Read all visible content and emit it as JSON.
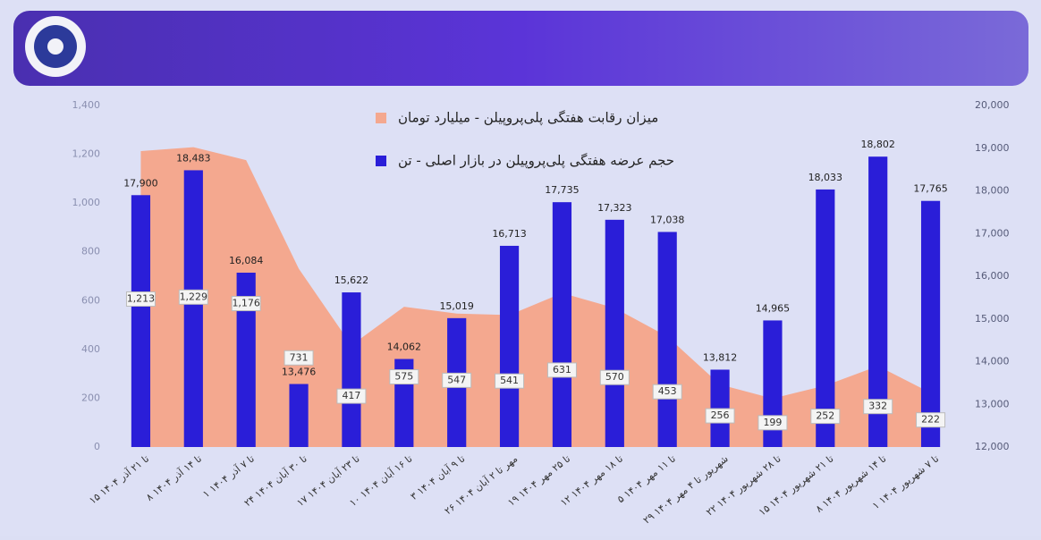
{
  "chart_data": {
    "type": "combo",
    "categories": [
      "۱۵ تا ۲۱ آذر ۱۴۰۴",
      "۸ تا ۱۴ آذر ۱۴۰۴",
      "۱ تا ۷ آذر ۱۴۰۴",
      "۲۴ تا ۳۰ آبان ۱۴۰۴",
      "۱۷ تا ۲۳ آبان ۱۴۰۴",
      "۱۰ تا ۱۶ آبان ۱۴۰۴",
      "۳ تا ۹ آبان ۱۴۰۴",
      "۲۶ مهر تا ۲ آبان ۱۴۰۴",
      "۱۹ تا ۲۵ مهر ۱۴۰۴",
      "۱۲ تا ۱۸ مهر ۱۴۰۴",
      "۵ تا ۱۱ مهر ۱۴۰۴",
      "۲۹ شهریور تا ۴ مهر ۱۴۰۴",
      "۲۲ تا ۲۸ شهریور ۱۴۰۴",
      "۱۵ تا ۲۱ شهریور ۱۴۰۴",
      "۸ تا ۱۴ شهریور ۱۴۰۴",
      "۱ تا ۷ شهریور ۱۴۰۴"
    ],
    "series": [
      {
        "name": "میزان رقابت هفتگی پلی‌پروپیلن - میلیارد تومان",
        "type": "area",
        "color": "#f4a88f",
        "axis": "y",
        "values": [
          1213,
          1229,
          1176,
          731,
          417,
          575,
          547,
          541,
          631,
          570,
          453,
          256,
          199,
          252,
          332,
          222
        ],
        "value_labels": [
          "1,213",
          "1,229",
          "1,176",
          "731",
          "417",
          "575",
          "547",
          "541",
          "631",
          "570",
          "453",
          "256",
          "199",
          "252",
          "332",
          "222"
        ]
      },
      {
        "name": "حجم عرضه هفتگی پلی‌پروپیلن در بازار اصلی - تن",
        "type": "bar",
        "color": "#2a1ed8",
        "axis": "y2",
        "values": [
          17900,
          18483,
          16084,
          13476,
          15622,
          14062,
          15019,
          16713,
          17735,
          17323,
          17038,
          13812,
          14965,
          18033,
          18802,
          17765
        ],
        "value_labels": [
          "17,900",
          "18,483",
          "16,084",
          "13,476",
          "15,622",
          "14,062",
          "15,019",
          "16,713",
          "17,735",
          "17,323",
          "17,038",
          "13,812",
          "14,965",
          "18,033",
          "18,802",
          "17,765"
        ]
      }
    ],
    "ylim": [
      0,
      1400
    ],
    "yticks": [
      0,
      200,
      400,
      600,
      800,
      {
        "value": 1000,
        "label": "1,000"
      },
      {
        "value": 1200,
        "label": "1,200"
      },
      {
        "value": 1400,
        "label": "1,400"
      }
    ],
    "y2lim": [
      12000,
      20000
    ],
    "y2ticks": [
      {
        "value": 12000,
        "label": "12,000"
      },
      {
        "value": 13000,
        "label": "13,000"
      },
      {
        "value": 14000,
        "label": "14,000"
      },
      {
        "value": 15000,
        "label": "15,000"
      },
      {
        "value": 16000,
        "label": "16,000"
      },
      {
        "value": 17000,
        "label": "17,000"
      },
      {
        "value": 18000,
        "label": "18,000"
      },
      {
        "value": 19000,
        "label": "19,000"
      },
      {
        "value": 20000,
        "label": "20,000"
      }
    ],
    "grid": false,
    "legend": "top"
  }
}
